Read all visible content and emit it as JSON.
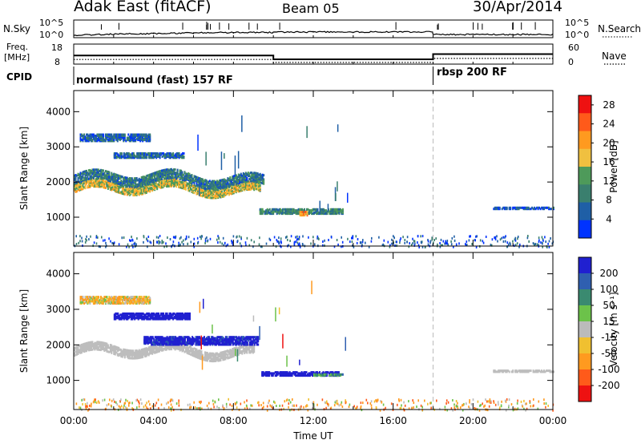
{
  "header": {
    "title": "Adak East (fitACF)",
    "beam": "Beam 05",
    "date": "30/Apr/2014"
  },
  "panel_labels": {
    "nsky": "N.Sky",
    "nsky_ticks": [
      "10^5",
      "10^0"
    ],
    "nsky_right_ticks": [
      "10^5",
      "10^0"
    ],
    "nsearch": "N.Search",
    "freq": "Freq.",
    "freq_unit": "[MHz]",
    "freq_ticks": [
      "18",
      "8"
    ],
    "nave": "Nave",
    "nave_ticks": [
      "60",
      "0"
    ],
    "cpid": "CPID",
    "cpid_segments": [
      "normalsound (fast) 157 RF",
      "rbsp 200 RF"
    ]
  },
  "colors": {
    "power_scale": [
      "#0033ff",
      "#1f5fa6",
      "#3a7f6e",
      "#4e9a5a",
      "#f0c040",
      "#ff9a1f",
      "#ff5a1a",
      "#ee1111"
    ],
    "velocity_scale": [
      "#2020d0",
      "#2f5fb0",
      "#3a8a70",
      "#6cc24a",
      "#bbbbbb",
      "#f0c030",
      "#ff9a1f",
      "#ff5a1a",
      "#ee1111"
    ],
    "ground_scatter": "#bdbdbd"
  },
  "chart_data": [
    {
      "type": "line",
      "name": "N.Sky / N.Search",
      "x": [
        "00:00",
        "02:00",
        "04:00",
        "06:00",
        "08:00",
        "09:58",
        "10:00",
        "12:00",
        "14:00",
        "16:00",
        "17:58",
        "18:00",
        "20:00",
        "22:00",
        "24:00"
      ],
      "series": [
        {
          "name": "N.Sky",
          "values": [
            5,
            10,
            14,
            22,
            30,
            30,
            40,
            40,
            40,
            40,
            40,
            8,
            8,
            8,
            8
          ]
        }
      ],
      "ylim": [
        1,
        100000
      ],
      "yscale": "log"
    },
    {
      "type": "line",
      "name": "Freq / Nave",
      "x": [
        "00:00",
        "10:00",
        "10:00",
        "18:00",
        "18:00",
        "24:00"
      ],
      "series": [
        {
          "name": "Freq.",
          "values": [
            12.3,
            12.3,
            10.4,
            10.4,
            13.0,
            13.0
          ]
        },
        {
          "name": "Nave",
          "values": [
            14,
            14,
            5,
            5,
            17,
            17
          ]
        }
      ],
      "ylim_left": [
        8,
        18
      ],
      "ylim_right": [
        0,
        60
      ]
    },
    {
      "type": "heatmap",
      "name": "Power",
      "xlabel": "",
      "ylabel": "Slant Range [km]",
      "xlim": [
        "00:00",
        "24:00"
      ],
      "ylim": [
        180,
        4600
      ],
      "yticks": [
        1000,
        2000,
        3000,
        4000
      ],
      "colorbar_label": "Power [dB]",
      "colorbar_ticks": [
        4,
        8,
        12,
        16,
        20,
        24,
        28
      ],
      "colorbar_range": [
        0,
        30
      ],
      "echo_regions": [
        {
          "t_start": 0.0,
          "t_end": 9.3,
          "r_center": 1850,
          "r_width": 220,
          "wavy": true,
          "value": 16
        },
        {
          "t_start": 0.0,
          "t_end": 9.5,
          "r_center": 2100,
          "r_width": 250,
          "wavy": true,
          "value": 8
        },
        {
          "t_start": 0.3,
          "t_end": 3.8,
          "r_center": 3300,
          "r_width": 200,
          "value": 6
        },
        {
          "t_start": 2.0,
          "t_end": 5.5,
          "r_center": 2800,
          "r_width": 150,
          "value": 7
        },
        {
          "t_start": 9.3,
          "t_end": 13.5,
          "r_center": 1200,
          "r_width": 130,
          "value": 10
        },
        {
          "t_start": 11.3,
          "t_end": 11.7,
          "r_center": 1150,
          "r_width": 120,
          "value": 20
        },
        {
          "t_start": 21.0,
          "t_end": 24.0,
          "r_center": 1300,
          "r_width": 60,
          "value": 4
        }
      ],
      "near_range_scatter": {
        "r_max": 500,
        "t_start": 0.0,
        "t_end": 24.0,
        "value": 5
      }
    },
    {
      "type": "heatmap",
      "name": "Velocity",
      "xlabel": "Time UT",
      "ylabel": "Slant Range [km]",
      "xlim": [
        "00:00",
        "24:00"
      ],
      "ylim": [
        180,
        4600
      ],
      "xticks": [
        "00:00",
        "04:00",
        "08:00",
        "12:00",
        "16:00",
        "20:00",
        "00:00"
      ],
      "yticks": [
        1000,
        2000,
        3000,
        4000
      ],
      "colorbar_label": "Velocity [m s⁻¹]",
      "colorbar_ticks": [
        200,
        100,
        50,
        15,
        -15,
        -50,
        -100,
        -200
      ],
      "colorbar_range": [
        -250,
        250
      ],
      "echo_regions": [
        {
          "t_start": 0.0,
          "t_end": 9.0,
          "r_center": 1850,
          "r_width": 230,
          "wavy": true,
          "value": 0,
          "ground_scatter": true
        },
        {
          "t_start": 3.5,
          "t_end": 9.2,
          "r_center": 2150,
          "r_width": 220,
          "value": 180
        },
        {
          "t_start": 2.0,
          "t_end": 5.8,
          "r_center": 2850,
          "r_width": 180,
          "value": 200
        },
        {
          "t_start": 0.3,
          "t_end": 3.8,
          "r_center": 3300,
          "r_width": 200,
          "value": -30
        },
        {
          "t_start": 9.4,
          "t_end": 13.3,
          "r_center": 1230,
          "r_width": 120,
          "value": 210
        },
        {
          "t_start": 12.0,
          "t_end": 13.5,
          "r_center": 1200,
          "r_width": 60,
          "value": 40
        },
        {
          "t_start": 21.0,
          "t_end": 24.0,
          "r_center": 1300,
          "r_width": 50,
          "value": 0,
          "ground_scatter": true
        }
      ],
      "near_range_scatter": {
        "r_max": 500,
        "t_start": 0.0,
        "t_end": 24.0,
        "value": -40
      }
    }
  ]
}
